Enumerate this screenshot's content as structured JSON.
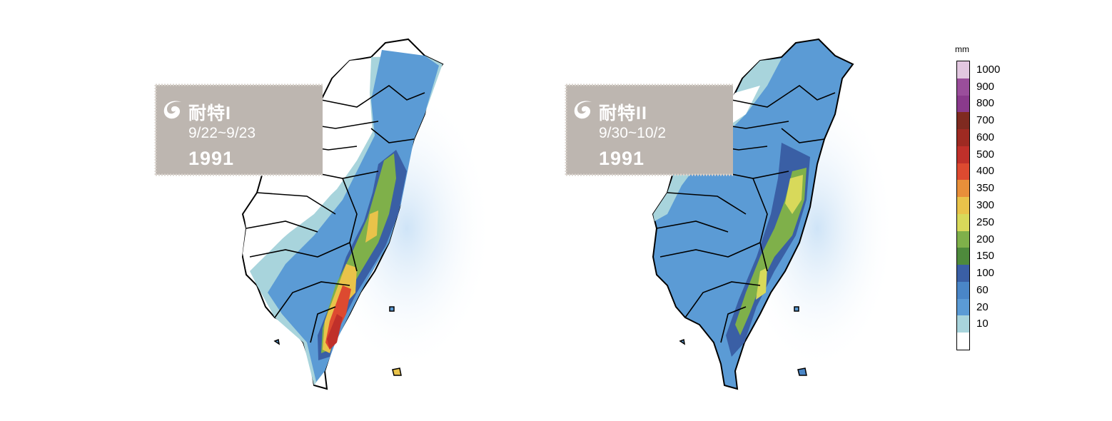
{
  "panels": [
    {
      "storm_name": "耐特I",
      "dates": "9/22~9/23",
      "year": "1991"
    },
    {
      "storm_name": "耐特II",
      "dates": "9/30~10/2",
      "year": "1991"
    }
  ],
  "legend": {
    "unit": "mm",
    "levels": [
      {
        "label": "1000",
        "color": "#e2c7e0"
      },
      {
        "label": "900",
        "color": "#9a4e9b"
      },
      {
        "label": "800",
        "color": "#8a3a8c"
      },
      {
        "label": "700",
        "color": "#7f2a20"
      },
      {
        "label": "600",
        "color": "#9e2a22"
      },
      {
        "label": "500",
        "color": "#c0302a"
      },
      {
        "label": "400",
        "color": "#dd4a30"
      },
      {
        "label": "350",
        "color": "#e88f3a"
      },
      {
        "label": "300",
        "color": "#e9c34a"
      },
      {
        "label": "250",
        "color": "#d8d95a"
      },
      {
        "label": "200",
        "color": "#7fb04a"
      },
      {
        "label": "150",
        "color": "#4e8a3c"
      },
      {
        "label": "100",
        "color": "#3a5fa5"
      },
      {
        "label": "60",
        "color": "#4a86c7"
      },
      {
        "label": "20",
        "color": "#5b9bd5"
      },
      {
        "label": "10",
        "color": "#a8d4dc"
      },
      {
        "label": "",
        "color": "#ffffff"
      }
    ]
  },
  "colors": {
    "card_background": "#bdb6b0",
    "coastline": "#000000",
    "sea_glow": "#d6e9f8"
  },
  "icons": [
    "typhoon-icon"
  ]
}
